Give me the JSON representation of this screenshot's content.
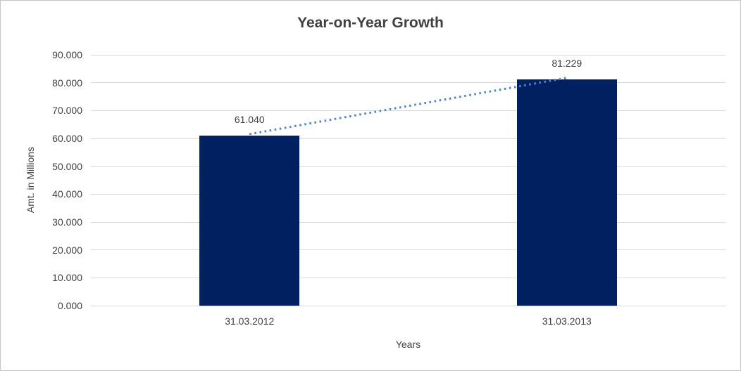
{
  "chart_data": {
    "type": "bar",
    "title": "Year-on-Year Growth",
    "categories": [
      "31.03.2012",
      "31.03.2013"
    ],
    "values": [
      61.04,
      81.229
    ],
    "data_labels": [
      "61.040",
      "81.229"
    ],
    "xlabel": "Years",
    "ylabel": "Amt. in Millions",
    "ylim": [
      0,
      90
    ],
    "grid": true,
    "legend_position": "none",
    "yticks": [
      {
        "value": 0,
        "label": "0.000"
      },
      {
        "value": 10,
        "label": "10.000"
      },
      {
        "value": 20,
        "label": "20.000"
      },
      {
        "value": 30,
        "label": "30.000"
      },
      {
        "value": 40,
        "label": "40.000"
      },
      {
        "value": 50,
        "label": "50.000"
      },
      {
        "value": 60,
        "label": "60.000"
      },
      {
        "value": 70,
        "label": "70.000"
      },
      {
        "value": 80,
        "label": "80.000"
      },
      {
        "value": 90,
        "label": "90.000"
      }
    ],
    "trendline": {
      "type": "linear",
      "style": "dotted"
    },
    "colors": {
      "bar": "#002060",
      "trendline": "#4f87c5",
      "gridline": "#d9d9d9",
      "text": "#404040",
      "border": "#c8c6c6"
    }
  }
}
